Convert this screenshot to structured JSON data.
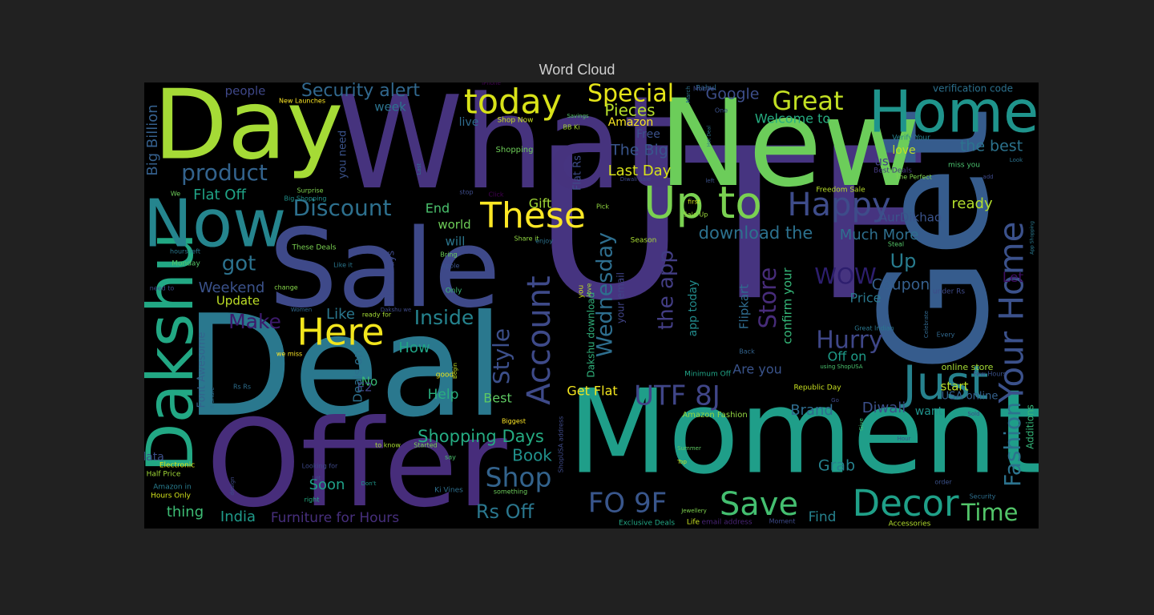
{
  "chart_data": {
    "type": "wordcloud",
    "title": "Word Cloud",
    "words": [
      {
        "text": "UTF",
        "color": "#463480",
        "rank": 100
      },
      {
        "text": "Get",
        "color": "#365c8d",
        "rank": 98
      },
      {
        "text": "Moment",
        "color": "#1f9e89",
        "rank": 95
      },
      {
        "text": "Deal",
        "color": "#2a788e",
        "rank": 94
      },
      {
        "text": "What",
        "color": "#46337e",
        "rank": 92
      },
      {
        "text": "Offer",
        "color": "#472d7b",
        "rank": 90
      },
      {
        "text": "New",
        "color": "#6ccd5a",
        "rank": 88
      },
      {
        "text": "Sale",
        "color": "#3e4989",
        "rank": 86
      },
      {
        "text": "Day",
        "color": "#a5db36",
        "rank": 84
      },
      {
        "text": "Dakshu",
        "color": "#22a884",
        "rank": 72
      },
      {
        "text": "Now",
        "color": "#25858e",
        "rank": 70
      },
      {
        "text": "Home",
        "color": "#1f948c",
        "rank": 68
      },
      {
        "text": "Your Home",
        "color": "#3b518b",
        "rank": 60
      },
      {
        "text": "Just",
        "color": "#26828e",
        "rank": 58
      },
      {
        "text": "Account",
        "color": "#3e4a89",
        "rank": 56
      },
      {
        "text": "Decor",
        "color": "#1fa088",
        "rank": 55
      },
      {
        "text": "Up to",
        "color": "#7ad151",
        "rank": 54
      },
      {
        "text": "These",
        "color": "#fde725",
        "rank": 53
      },
      {
        "text": "Here",
        "color": "#f2e51d",
        "rank": 52
      },
      {
        "text": "today",
        "color": "#d8e219",
        "rank": 51
      },
      {
        "text": "Save",
        "color": "#44bf70",
        "rank": 50
      },
      {
        "text": "FO 9F",
        "color": "#39568c",
        "rank": 49
      },
      {
        "text": "UTF 8J",
        "color": "#404688",
        "rank": 48
      },
      {
        "text": "Happy",
        "color": "#3e4c8a",
        "rank": 46
      },
      {
        "text": "Fashion",
        "color": "#2c738e",
        "rank": 45
      },
      {
        "text": "Great",
        "color": "#c2df23",
        "rank": 44
      },
      {
        "text": "Special",
        "color": "#e5e419",
        "rank": 43
      },
      {
        "text": "Shop",
        "color": "#33638d",
        "rank": 42
      },
      {
        "text": "Hurry",
        "color": "#3f4788",
        "rank": 41
      },
      {
        "text": "Store",
        "color": "#472c7a",
        "rank": 40
      },
      {
        "text": "Time",
        "color": "#52c569",
        "rank": 39
      },
      {
        "text": "Style",
        "color": "#3c4f8a",
        "rank": 38
      },
      {
        "text": "Discount",
        "color": "#2d708e",
        "rank": 38
      },
      {
        "text": "product",
        "color": "#33638d",
        "rank": 37
      },
      {
        "text": "WOW",
        "color": "#2d1e6e",
        "rank": 36
      },
      {
        "text": "Wednesday",
        "color": "#2e6e8e",
        "rank": 36
      },
      {
        "text": "the app",
        "color": "#433e85",
        "rank": 35
      },
      {
        "text": "Security alert",
        "color": "#31688e",
        "rank": 35
      },
      {
        "text": "got",
        "color": "#2c728e",
        "rank": 34
      },
      {
        "text": "Make",
        "color": "#3d1a6b",
        "rank": 34
      },
      {
        "text": "Inside",
        "color": "#25838e",
        "rank": 34
      },
      {
        "text": "Up",
        "color": "#287c8e",
        "rank": 33
      },
      {
        "text": "Rs Off",
        "color": "#2a778e",
        "rank": 33
      },
      {
        "text": "Shopping Days",
        "color": "#25ab82",
        "rank": 32
      },
      {
        "text": "Pieces",
        "color": "#b5de2b",
        "rank": 31
      },
      {
        "text": "download the",
        "color": "#2c718e",
        "rank": 31
      },
      {
        "text": "Google",
        "color": "#3d4e8a",
        "rank": 30
      },
      {
        "text": "Book",
        "color": "#21918c",
        "rank": 30
      },
      {
        "text": "Coupon",
        "color": "#355f8d",
        "rank": 30
      },
      {
        "text": "Diwali",
        "color": "#3c508b",
        "rank": 29
      },
      {
        "text": "Last Day",
        "color": "#d8e219",
        "rank": 29
      },
      {
        "text": "The Big",
        "color": "#39558c",
        "rank": 29
      },
      {
        "text": "Much More",
        "color": "#2e6f8e",
        "rank": 28
      },
      {
        "text": "How",
        "color": "#20a486",
        "rank": 28
      },
      {
        "text": "Weekend",
        "color": "#3b528b",
        "rank": 28
      },
      {
        "text": "Big Billion",
        "color": "#35608d",
        "rank": 27
      },
      {
        "text": "Brand",
        "color": "#2f6c8e",
        "rank": 27
      },
      {
        "text": "the best",
        "color": "#2c738e",
        "rank": 27
      },
      {
        "text": "Grab",
        "color": "#26828e",
        "rank": 26
      },
      {
        "text": "Soon",
        "color": "#1fa188",
        "rank": 26
      },
      {
        "text": "Like",
        "color": "#2a778e",
        "rank": 26
      },
      {
        "text": "Flat Off",
        "color": "#20a386",
        "rank": 25
      },
      {
        "text": "Help",
        "color": "#29af7f",
        "rank": 25
      },
      {
        "text": "Best",
        "color": "#5ec962",
        "rank": 25
      },
      {
        "text": "Gift",
        "color": "#a2da37",
        "rank": 25
      },
      {
        "text": "Let",
        "color": "#3e0d60",
        "rank": 24
      },
      {
        "text": "Price",
        "color": "#2a788e",
        "rank": 24
      },
      {
        "text": "Get Flat",
        "color": "#f4e61e",
        "rank": 24
      },
      {
        "text": "Welcome to",
        "color": "#26ad81",
        "rank": 24
      },
      {
        "text": "Amazon",
        "color": "#f8e621",
        "rank": 23
      },
      {
        "text": "End",
        "color": "#4ac16d",
        "rank": 23
      },
      {
        "text": "Update",
        "color": "#bddf26",
        "rank": 23
      },
      {
        "text": "start",
        "color": "#b8de29",
        "rank": 23
      },
      {
        "text": "world",
        "color": "#6ece58",
        "rank": 23
      },
      {
        "text": "ready",
        "color": "#b2dd2d",
        "rank": 23
      },
      {
        "text": "Are you",
        "color": "#3a548c",
        "rank": 22
      },
      {
        "text": "Find",
        "color": "#26828e",
        "rank": 22
      },
      {
        "text": "India",
        "color": "#1f9a8a",
        "rank": 22
      },
      {
        "text": "thing",
        "color": "#3dbc74",
        "rank": 22
      },
      {
        "text": "Furniture for Hours",
        "color": "#472f7d",
        "rank": 22
      },
      {
        "text": "No",
        "color": "#3aba76",
        "rank": 22
      },
      {
        "text": "E2",
        "color": "#404588",
        "rank": 21
      },
      {
        "text": "will",
        "color": "#2b758e",
        "rank": 21
      },
      {
        "text": "Off on",
        "color": "#1e9c89",
        "rank": 21
      },
      {
        "text": "USA online",
        "color": "#34618d",
        "rank": 21
      },
      {
        "text": "want",
        "color": "#20928c",
        "rank": 21
      },
      {
        "text": "love",
        "color": "#c0df25",
        "rank": 21
      },
      {
        "text": "people",
        "color": "#3f4889",
        "rank": 20
      },
      {
        "text": "week",
        "color": "#2c738e",
        "rank": 20
      },
      {
        "text": "live",
        "color": "#2f6b8e",
        "rank": 20
      },
      {
        "text": "Free",
        "color": "#3b518b",
        "rank": 20
      },
      {
        "text": "you need",
        "color": "#3a538b",
        "rank": 20
      },
      {
        "text": "us",
        "color": "#423f85",
        "rank": 20
      },
      {
        "text": "AurDikhao",
        "color": "#3a538b",
        "rank": 20
      },
      {
        "text": "app today",
        "color": "#228c8d",
        "rank": 20
      },
      {
        "text": "confirm your",
        "color": "#35b779",
        "rank": 20
      },
      {
        "text": "Flipkart",
        "color": "#2f6b8e",
        "rank": 20
      },
      {
        "text": "Deals on",
        "color": "#2d708e",
        "rank": 20
      },
      {
        "text": "Font Awesome",
        "color": "#33638d",
        "rank": 20
      },
      {
        "text": "Dakshu download",
        "color": "#30b07a",
        "rank": 20
      },
      {
        "text": "Billion Days",
        "color": "#3e4a89",
        "rank": 20
      },
      {
        "text": "Additions",
        "color": "#34b679",
        "rank": 20
      },
      {
        "text": "Flat Rs",
        "color": "#3e4c8a",
        "rank": 20
      },
      {
        "text": "your email",
        "color": "#414487",
        "rank": 19
      },
      {
        "text": "data",
        "color": "#3c4f8a",
        "rank": 19
      },
      {
        "text": "verification code",
        "color": "#2c718e",
        "rank": 19
      },
      {
        "text": "Shop Now",
        "color": "#c8e020",
        "rank": 12
      },
      {
        "text": "Shopping",
        "color": "#6ece58",
        "rank": 12
      },
      {
        "text": "New Launches",
        "color": "#fde725",
        "rank": 12
      },
      {
        "text": "Surprise",
        "color": "#7fd34e",
        "rank": 12
      },
      {
        "text": "Big Shopping",
        "color": "#20928c",
        "rank": 12
      },
      {
        "text": "These Deals",
        "color": "#7ad151",
        "rank": 12
      },
      {
        "text": "Like it",
        "color": "#2a778e",
        "rank": 12
      },
      {
        "text": "Share it",
        "color": "#90d743",
        "rank": 12
      },
      {
        "text": "Pick",
        "color": "#93d741",
        "rank": 12
      },
      {
        "text": "Sale Up",
        "color": "#9bd93c",
        "rank": 12
      },
      {
        "text": "first",
        "color": "#cde11d",
        "rank": 12
      },
      {
        "text": "Freedom Sale",
        "color": "#b8de29",
        "rank": 12
      },
      {
        "text": "Steal",
        "color": "#54c568",
        "rank": 12
      },
      {
        "text": "Season",
        "color": "#a8db34",
        "rank": 12
      },
      {
        "text": "enjoy",
        "color": "#2c728e",
        "rank": 12
      },
      {
        "text": "Bring",
        "color": "#6ccd5a",
        "rank": 12
      },
      {
        "text": "Apple",
        "color": "#3b528b",
        "rank": 12
      },
      {
        "text": "Only",
        "color": "#3dbc74",
        "rank": 12
      },
      {
        "text": "change",
        "color": "#86d549",
        "rank": 12
      },
      {
        "text": "Monday",
        "color": "#54c568",
        "rank": 12
      },
      {
        "text": "hours left",
        "color": "#2a788e",
        "rank": 12
      },
      {
        "text": "need to",
        "color": "#3e4c8a",
        "rank": 12
      },
      {
        "text": "we miss",
        "color": "#fde725",
        "rank": 12
      },
      {
        "text": "Women",
        "color": "#31688e",
        "rank": 11
      },
      {
        "text": "ready for",
        "color": "#a5db36",
        "rank": 12
      },
      {
        "text": "Rs Rs",
        "color": "#2e6e8e",
        "rank": 12
      },
      {
        "text": "good",
        "color": "#eae51a",
        "rank": 12
      },
      {
        "text": "Begin",
        "color": "#c0df25",
        "rank": 11
      },
      {
        "text": "Biggest",
        "color": "#fde725",
        "rank": 12
      },
      {
        "text": "to know",
        "color": "#a8db34",
        "rank": 12
      },
      {
        "text": "Started",
        "color": "#7ad151",
        "rank": 12
      },
      {
        "text": "say",
        "color": "#4ac16d",
        "rank": 12
      },
      {
        "text": "Looking for",
        "color": "#3e4989",
        "rank": 12
      },
      {
        "text": "Electronic",
        "color": "#e2e418",
        "rank": 12
      },
      {
        "text": "Half Price",
        "color": "#a2da37",
        "rank": 12
      },
      {
        "text": "Amazon in",
        "color": "#287c8e",
        "rank": 12
      },
      {
        "text": "Hours Only",
        "color": "#d2e21b",
        "rank": 12
      },
      {
        "text": "right",
        "color": "#25ab82",
        "rank": 12
      },
      {
        "text": "Don't",
        "color": "#1f968b",
        "rank": 11
      },
      {
        "text": "Ki Vines",
        "color": "#2e6f8e",
        "rank": 12
      },
      {
        "text": "something",
        "color": "#6ccd5a",
        "rank": 12
      },
      {
        "text": "Exclusive Deals",
        "color": "#22a785",
        "rank": 12
      },
      {
        "text": "Life",
        "color": "#c8e020",
        "rank": 12
      },
      {
        "text": "email address",
        "color": "#482475",
        "rank": 12
      },
      {
        "text": "Moment",
        "color": "#3e4a89",
        "rank": 11
      },
      {
        "text": "Accessories",
        "color": "#b2dd2d",
        "rank": 12
      },
      {
        "text": "Jewellery",
        "color": "#7fd34e",
        "rank": 11
      },
      {
        "text": "Security",
        "color": "#2e6f8e",
        "rank": 12
      },
      {
        "text": "order",
        "color": "#3b528b",
        "rank": 12
      },
      {
        "text": "Amazon Fashion",
        "color": "#93d741",
        "rank": 13
      },
      {
        "text": "Top",
        "color": "#c0df25",
        "rank": 11
      },
      {
        "text": "Summer",
        "color": "#5ec962",
        "rank": 11
      },
      {
        "text": "Hour",
        "color": "#3b528b",
        "rank": 11
      },
      {
        "text": "Minimum Off",
        "color": "#20a386",
        "rank": 12
      },
      {
        "text": "Back",
        "color": "#33638d",
        "rank": 12
      },
      {
        "text": "Republic Day",
        "color": "#c8e020",
        "rank": 12
      },
      {
        "text": "using ShopUSA",
        "color": "#4ac16d",
        "rank": 12
      },
      {
        "text": "online store",
        "color": "#a5db36",
        "rank": 13
      },
      {
        "text": "Few Hours",
        "color": "#3b528b",
        "rank": 11
      },
      {
        "text": "Great Indian",
        "color": "#2a778e",
        "rank": 12
      },
      {
        "text": "Every",
        "color": "#31688e",
        "rank": 12
      },
      {
        "text": "under Rs",
        "color": "#3e4a89",
        "rank": 12
      },
      {
        "text": "miss you",
        "color": "#4ac16d",
        "rank": 12
      },
      {
        "text": "Verify Your",
        "color": "#26828e",
        "rank": 12
      },
      {
        "text": "Best Deals",
        "color": "#44397f",
        "rank": 12
      },
      {
        "text": "The Perfect",
        "color": "#7fd34e",
        "rank": 11
      },
      {
        "text": "Diwali Sale",
        "color": "#3e4a89",
        "rank": 11
      },
      {
        "text": "Savings",
        "color": "#54c568",
        "rank": 11
      },
      {
        "text": "BB Ki",
        "color": "#a8db34",
        "rank": 11
      },
      {
        "text": "Rahul",
        "color": "#2e6e8e",
        "rank": 12
      },
      {
        "text": "Mobile",
        "color": "#3e4989",
        "rank": 12
      },
      {
        "text": "ShopUSA address",
        "color": "#3e4a89",
        "rank": 12
      },
      {
        "text": "stop",
        "color": "#3e4c8a",
        "rank": 11
      },
      {
        "text": "Click",
        "color": "#440154",
        "rank": 11
      },
      {
        "text": "Last",
        "color": "#2e6f8e",
        "rank": 11
      },
      {
        "text": "One",
        "color": "#3b518b",
        "rank": 11
      },
      {
        "text": "add",
        "color": "#3e4989",
        "rank": 11
      },
      {
        "text": "Look",
        "color": "#2c728e",
        "rank": 11
      },
      {
        "text": "iPhone",
        "color": "#440154",
        "rank": 11
      },
      {
        "text": "Give",
        "color": "#3dbc74",
        "rank": 11
      },
      {
        "text": "Go",
        "color": "#3e4a89",
        "rank": 10
      },
      {
        "text": "March",
        "color": "#2c728e",
        "rank": 10
      },
      {
        "text": "Hot Deal",
        "color": "#2c728e",
        "rank": 10
      },
      {
        "text": "left",
        "color": "#3b528b",
        "rank": 10
      },
      {
        "text": "Celebrate",
        "color": "#31688e",
        "rank": 10
      },
      {
        "text": "App Shopping",
        "color": "#2a788e",
        "rank": 10
      },
      {
        "text": "Sold",
        "color": "#3e4c8a",
        "rank": 10
      },
      {
        "text": "We",
        "color": "#6ccd5a",
        "rank": 12
      },
      {
        "text": "It Share",
        "color": "#2e6f8e",
        "rank": 10
      },
      {
        "text": "design",
        "color": "#3e4a89",
        "rank": 10
      },
      {
        "text": "Lot",
        "color": "#3e4989",
        "rank": 10
      },
      {
        "text": "you",
        "color": "#d2e21b",
        "rank": 11
      },
      {
        "text": "love",
        "color": "#a8db34",
        "rank": 11
      },
      {
        "text": "Dakshu we",
        "color": "#3e4a89",
        "rank": 10
      }
    ]
  }
}
